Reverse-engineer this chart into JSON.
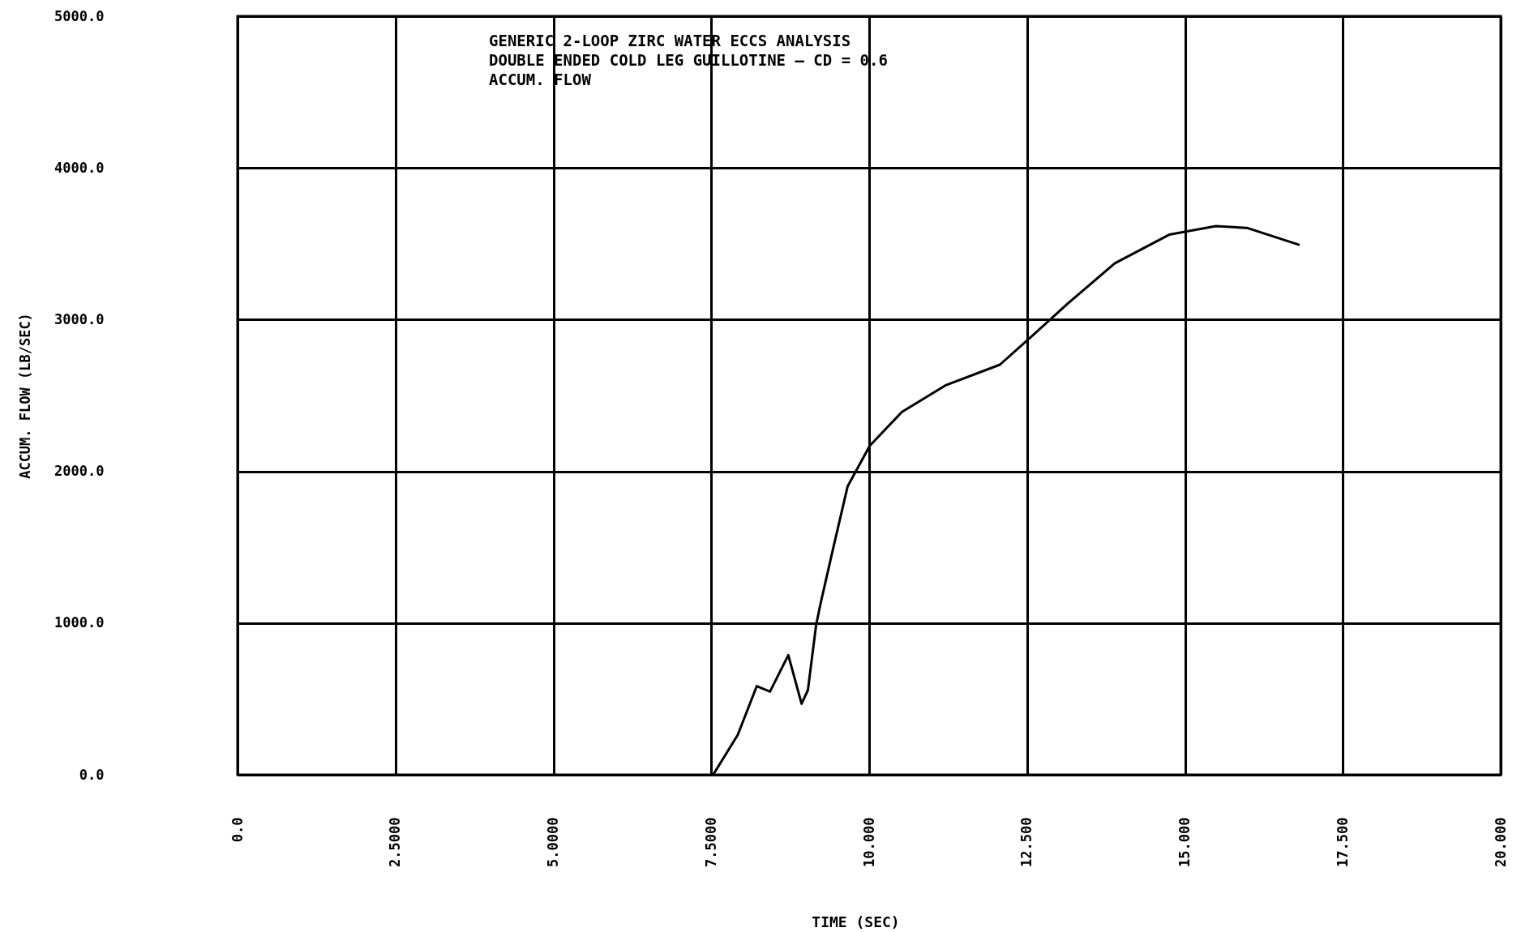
{
  "chart_data": {
    "type": "line",
    "title": "GENERIC 2-LOOP ZIRC WATER ECCS ANALYSIS",
    "subtitle": "DOUBLE ENDED COLD LEG GUILLOTINE — CD = 0.6",
    "annotations": [
      "ACCUM. FLOW"
    ],
    "xlabel": "TIME (SEC)",
    "ylabel": "ACCUM. FLOW  (LB/SEC)",
    "x": [
      7.53,
      7.92,
      8.22,
      8.43,
      8.72,
      8.93,
      9.03,
      9.16,
      9.23,
      9.42,
      9.66,
      10.01,
      10.52,
      11.22,
      12.07,
      12.55,
      13.14,
      13.89,
      14.75,
      15.49,
      15.98,
      16.8
    ],
    "series": [
      {
        "color": "#000000",
        "values": [
          0,
          263,
          584,
          548,
          789,
          468,
          557,
          985,
          1127,
          1474,
          1902,
          2169,
          2392,
          2569,
          2703,
          2881,
          3104,
          3371,
          3560,
          3616,
          3605,
          3494
        ]
      }
    ],
    "xlim": [
      0,
      20
    ],
    "xticks": [
      {
        "value": 0,
        "label": "0.0"
      },
      {
        "value": 2.5,
        "label": "2.5000"
      },
      {
        "value": 5,
        "label": "5.0000"
      },
      {
        "value": 7.5,
        "label": "7.5000"
      },
      {
        "value": 10,
        "label": "10.000"
      },
      {
        "value": 12.5,
        "label": "12.500"
      },
      {
        "value": 15,
        "label": "15.000"
      },
      {
        "value": 17.5,
        "label": "17.500"
      },
      {
        "value": 20,
        "label": "20.000"
      }
    ],
    "ylim": [
      0,
      5000
    ],
    "yticks": [
      {
        "value": 0,
        "label": "0.0"
      },
      {
        "value": 1000,
        "label": "1000.0"
      },
      {
        "value": 2000,
        "label": "2000.0"
      },
      {
        "value": 3000,
        "label": "3000.0"
      },
      {
        "value": 4000,
        "label": "4000.0"
      },
      {
        "value": 5000,
        "label": "5000.0"
      }
    ],
    "grid": true,
    "line_style": "solid",
    "marker": "none"
  }
}
